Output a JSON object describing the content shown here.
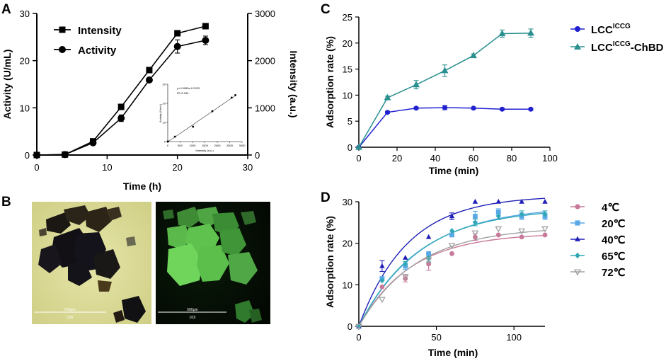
{
  "panels": {
    "A": "A",
    "B": "B",
    "C": "C",
    "D": "D"
  },
  "colors": {
    "c_lcc": "#2020d0",
    "c_chbd": "#2a8f8f",
    "d_4": "#c8789a",
    "d_20": "#5aa8e6",
    "d_40": "#2020b8",
    "d_65": "#2fa8b5",
    "d_72": "#a0a0a0"
  },
  "micrographs": {
    "left": {
      "scale_label": "500μm",
      "mag_label": "10X"
    },
    "right": {
      "scale_label": "500μm",
      "mag_label": "10X"
    }
  },
  "chart_data": [
    {
      "id": "A",
      "type": "line",
      "xlabel": "Time (h)",
      "ylabel": "Activity (U/mL)",
      "y2label": "Intensity (a.u.)",
      "xlim": [
        0,
        30
      ],
      "ylim": [
        0,
        30
      ],
      "y2lim": [
        0,
        3000
      ],
      "xticks": [
        "0",
        "10",
        "20",
        "30"
      ],
      "yticks": [
        "0",
        "10",
        "20",
        "30"
      ],
      "y2ticks": [
        "0",
        "1000",
        "2000",
        "3000"
      ],
      "legend_position": "top-left",
      "series": [
        {
          "name": "Intensity",
          "axis": "right",
          "marker": "square",
          "x": [
            0,
            4,
            8,
            12,
            16,
            20,
            24
          ],
          "y": [
            0,
            10,
            290,
            1020,
            1800,
            2580,
            2730
          ]
        },
        {
          "name": "Activity",
          "axis": "left",
          "marker": "circle",
          "x": [
            0,
            4,
            8,
            12,
            16,
            20,
            24
          ],
          "y": [
            0,
            0.1,
            2.6,
            7.8,
            15.9,
            23.0,
            24.3
          ],
          "err": [
            0,
            0,
            0.3,
            0.7,
            0.4,
            1.4,
            0.9
          ]
        }
      ],
      "inset": {
        "type": "scatter",
        "equation": "y=0.0089x-0.2023",
        "r2": "R²=0.994",
        "xlabel": "Intensity (a.u.)",
        "ylabel": "Activity (U/mL)",
        "xlim": [
          0,
          3000
        ],
        "ylim": [
          0,
          30
        ],
        "xticks": [
          "0",
          "500",
          "1000",
          "1500",
          "2000",
          "2500",
          "3000"
        ],
        "yticks": [
          "0",
          "10",
          "20",
          "30"
        ],
        "x": [
          0,
          10,
          290,
          1020,
          1800,
          2580,
          2730
        ],
        "y": [
          0,
          0.1,
          2.6,
          7.8,
          15.9,
          23.0,
          24.3
        ]
      }
    },
    {
      "id": "C",
      "type": "line",
      "xlabel": "Time (min)",
      "ylabel": "Adsorption rate (%)",
      "xlim": [
        0,
        100
      ],
      "ylim": [
        0,
        25
      ],
      "xticks": [
        "0",
        "20",
        "40",
        "60",
        "80",
        "100"
      ],
      "yticks": [
        "0",
        "5",
        "10",
        "15",
        "20",
        "25"
      ],
      "legend_position": "right",
      "series": [
        {
          "name": "LCC",
          "sup": "ICCG",
          "suffix": "",
          "marker": "circle",
          "colorKey": "c_lcc",
          "x": [
            0,
            15,
            30,
            45,
            60,
            75,
            90
          ],
          "y": [
            0,
            6.7,
            7.5,
            7.6,
            7.5,
            7.3,
            7.3
          ],
          "err": [
            0,
            0.2,
            0.2,
            0.4,
            0.2,
            0.2,
            0.2
          ]
        },
        {
          "name": "LCC",
          "sup": "ICCG",
          "suffix": "-ChBD",
          "marker": "triangle",
          "colorKey": "c_chbd",
          "x": [
            0,
            15,
            30,
            45,
            60,
            75,
            90
          ],
          "y": [
            0,
            9.5,
            12.0,
            14.7,
            17.6,
            21.8,
            21.9
          ],
          "err": [
            0,
            0.3,
            0.8,
            1.1,
            0.3,
            0.7,
            0.8
          ]
        }
      ]
    },
    {
      "id": "D",
      "type": "scatter",
      "xlabel": "Time (min)",
      "ylabel": "Adsorption rate (%)",
      "xlim": [
        0,
        120
      ],
      "ylim": [
        0,
        30
      ],
      "xticks": [
        "0",
        "50",
        "100"
      ],
      "yticks": [
        "0",
        "10",
        "20",
        "30"
      ],
      "legend_position": "right",
      "fit": "one-phase association",
      "series": [
        {
          "name": "4℃",
          "marker": "circle",
          "colorKey": "d_4",
          "x": [
            0,
            15,
            30,
            45,
            60,
            75,
            90,
            105,
            120
          ],
          "y": [
            0,
            9.5,
            11.5,
            15.0,
            17.5,
            21.5,
            22.0,
            21.5,
            22.0
          ],
          "err": [
            0,
            0,
            0.8,
            1.5,
            0,
            0.8,
            0,
            0,
            0
          ],
          "fitPlateau": 22.5,
          "fitK": 0.03
        },
        {
          "name": "20℃",
          "marker": "square",
          "colorKey": "d_20",
          "x": [
            0,
            15,
            30,
            45,
            60,
            75,
            90,
            105,
            120
          ],
          "y": [
            0,
            11.5,
            14.5,
            17.5,
            22.0,
            26.5,
            27.5,
            26.5,
            26.5
          ],
          "err": [
            0,
            0,
            0.8,
            0,
            0,
            1.2,
            0.8,
            0.8,
            0.8
          ],
          "fitPlateau": 29.0,
          "fitK": 0.025
        },
        {
          "name": "40℃",
          "marker": "triangle",
          "colorKey": "d_40",
          "x": [
            0,
            15,
            30,
            45,
            60,
            75,
            90,
            105,
            120
          ],
          "y": [
            0,
            14.5,
            16.5,
            21.5,
            26.5,
            30.0,
            30.0,
            30.0,
            30.0
          ],
          "err": [
            0,
            1.3,
            0,
            0,
            0.8,
            0,
            0,
            0,
            0
          ],
          "fitPlateau": 31.5,
          "fitK": 0.032
        },
        {
          "name": "65℃",
          "marker": "diamond",
          "colorKey": "d_65",
          "x": [
            0,
            15,
            30,
            45,
            60,
            75,
            90,
            105,
            120
          ],
          "y": [
            0,
            11.0,
            15.0,
            16.5,
            23.0,
            25.0,
            26.5,
            27.0,
            27.0
          ],
          "err": [
            0,
            0,
            0.6,
            1.0,
            0,
            0.8,
            0.8,
            0.8,
            0.8
          ],
          "fitPlateau": 28.5,
          "fitK": 0.026
        },
        {
          "name": "72℃",
          "marker": "triangle-down",
          "colorKey": "d_72",
          "x": [
            0,
            15,
            30,
            45,
            60,
            75,
            90,
            105,
            120
          ],
          "y": [
            0,
            6.5,
            12.0,
            16.0,
            19.5,
            22.5,
            23.5,
            23.0,
            23.5
          ],
          "err": [
            0,
            0,
            0,
            0.8,
            0,
            0,
            0,
            0,
            0
          ],
          "fitPlateau": 24.0,
          "fitK": 0.027
        }
      ]
    }
  ]
}
